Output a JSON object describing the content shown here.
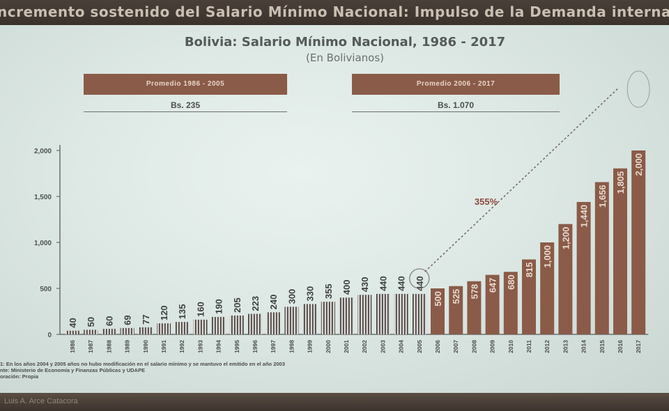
{
  "header": {
    "banner_text": "ncremento sostenido del Salario Mínimo Nacional: Impulso de la Demanda interna"
  },
  "chart_data": {
    "type": "bar",
    "title": "Bolivia: Salario Mínimo Nacional, 1986 - 2017",
    "subtitle": "(En Bolivianos)",
    "categories": [
      "1986",
      "1987",
      "1988",
      "1989",
      "1990",
      "1991",
      "1992",
      "1993",
      "1994",
      "1995",
      "1996",
      "1997",
      "1998",
      "1999",
      "2000",
      "2001",
      "2002",
      "2003",
      "2004",
      "2005",
      "2006",
      "2007",
      "2008",
      "2009",
      "2010",
      "2011",
      "2012",
      "2013",
      "2014",
      "2015",
      "2016",
      "2017"
    ],
    "values": [
      40,
      50,
      60,
      69,
      77,
      120,
      135,
      160,
      190,
      205,
      223,
      240,
      300,
      330,
      355,
      400,
      430,
      440,
      440,
      440,
      500,
      525,
      578,
      647,
      680,
      815,
      1000,
      1200,
      1440,
      1656,
      1805,
      2000
    ],
    "data_labels": [
      "40",
      "50",
      "60",
      "69",
      "77",
      "120",
      "135",
      "160",
      "190",
      "205",
      "223",
      "240",
      "300",
      "330",
      "355",
      "400",
      "430",
      "440",
      "440",
      "440",
      "500",
      "525",
      "578",
      "647",
      "680",
      "815",
      "1,000",
      "1,200",
      "1,440",
      "1,656",
      "1,805",
      "2,000"
    ],
    "yticks": [
      0,
      500,
      1000,
      1500,
      2000
    ],
    "ytick_labels": [
      "0",
      "500",
      "1,000",
      "1,500",
      "2,000"
    ],
    "ylim": [
      0,
      2100
    ],
    "grid": false,
    "annotation": "355%",
    "colors": {
      "period_1": "#dad6d2",
      "period_1_stripe": "#3c3a38",
      "period_2": "#8a5b48",
      "label_period_2": "#e9d9cf",
      "annotation": "#8a4a3e"
    }
  },
  "averages": [
    {
      "label": "Promedio 1986 - 2005",
      "value": "Bs. 235"
    },
    {
      "label": "Promedio 2006 - 2017",
      "value": "Bs. 1.070"
    }
  ],
  "notes": {
    "note": "1: En los años 2004 y 2005 años no hubo modificación en el salario mínimo y se mantuvo el emitido en el año 2003",
    "source": "nte: Ministerio de Economía y Finanzas Públicas y UDAPE",
    "elaboration": "oración: Propia"
  },
  "footer": {
    "author": "Luis A. Arce Catacora"
  }
}
